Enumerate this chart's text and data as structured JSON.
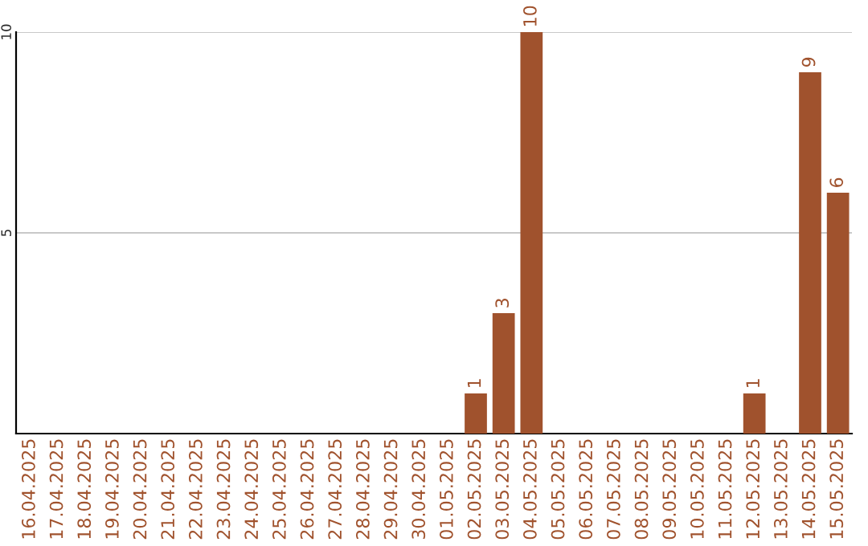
{
  "chart_data": {
    "type": "bar",
    "categories": [
      "16.04.2025",
      "17.04.2025",
      "18.04.2025",
      "19.04.2025",
      "20.04.2025",
      "21.04.2025",
      "22.04.2025",
      "23.04.2025",
      "24.04.2025",
      "25.04.2025",
      "26.04.2025",
      "27.04.2025",
      "28.04.2025",
      "29.04.2025",
      "30.04.2025",
      "01.05.2025",
      "02.05.2025",
      "03.05.2025",
      "04.05.2025",
      "05.05.2025",
      "06.05.2025",
      "07.05.2025",
      "08.05.2025",
      "09.05.2025",
      "10.05.2025",
      "11.05.2025",
      "12.05.2025",
      "13.05.2025",
      "14.05.2025",
      "15.05.2025"
    ],
    "values": [
      0,
      0,
      0,
      0,
      0,
      0,
      0,
      0,
      0,
      0,
      0,
      0,
      0,
      0,
      0,
      0,
      1,
      3,
      10,
      0,
      0,
      0,
      0,
      0,
      0,
      0,
      1,
      0,
      9,
      6
    ],
    "value_labels": [
      null,
      null,
      null,
      null,
      null,
      null,
      null,
      null,
      null,
      null,
      null,
      null,
      null,
      null,
      null,
      null,
      "1",
      "3",
      "10",
      null,
      null,
      null,
      null,
      null,
      null,
      null,
      "1",
      null,
      "9",
      "6"
    ],
    "color": "#a0522d",
    "ylim": [
      0,
      10
    ],
    "yticks": [
      5,
      10
    ],
    "grid": "y"
  }
}
